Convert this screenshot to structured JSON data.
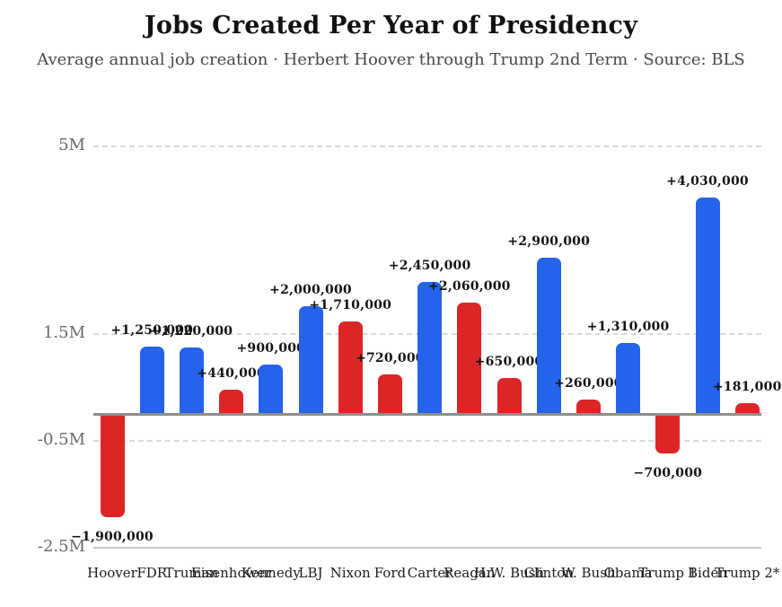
{
  "chart_data": {
    "type": "bar",
    "title": "Jobs Created Per Year of Presidency",
    "subtitle": "Average annual job creation · Herbert Hoover through Trump 2nd Term · Source: BLS",
    "unit": "jobs created per year (millions)",
    "ylim": [
      -2500000,
      5100000
    ],
    "grid": "horizontal dashed",
    "legend": "none",
    "y_ticks": [
      {
        "label": "5M",
        "value": 5000000,
        "line": "dashed"
      },
      {
        "label": "1.5M",
        "value": 1500000,
        "line": "dashed"
      },
      {
        "label": "-0.5M",
        "value": -500000,
        "line": "dashed"
      },
      {
        "label": "-2.5M",
        "value": -2500000,
        "line": "solid"
      }
    ],
    "bars": [
      {
        "president": "Hoover",
        "value": -1900000,
        "label": "−1,900,000",
        "party": "republican"
      },
      {
        "president": "FDR",
        "value": 1250000,
        "label": "+1,250,000",
        "party": "democrat"
      },
      {
        "president": "Truman",
        "value": 1220000,
        "label": "+1,220,000",
        "party": "democrat"
      },
      {
        "president": "Eisenhower",
        "value": 440000,
        "label": "+440,000",
        "party": "republican"
      },
      {
        "president": "Kennedy",
        "value": 900000,
        "label": "+900,000",
        "party": "democrat"
      },
      {
        "president": "LBJ",
        "value": 2000000,
        "label": "+2,000,000",
        "party": "democrat"
      },
      {
        "president": "Nixon",
        "value": 1710000,
        "label": "+1,710,000",
        "party": "republican"
      },
      {
        "president": "Ford",
        "value": 720000,
        "label": "+720,000",
        "party": "republican"
      },
      {
        "president": "Carter",
        "value": 2450000,
        "label": "+2,450,000",
        "party": "democrat"
      },
      {
        "president": "Reagan",
        "value": 2060000,
        "label": "+2,060,000",
        "party": "republican"
      },
      {
        "president": "H.W. Bush",
        "value": 650000,
        "label": "+650,000",
        "party": "republican"
      },
      {
        "president": "Clinton",
        "value": 2900000,
        "label": "+2,900,000",
        "party": "democrat"
      },
      {
        "president": "W. Bush",
        "value": 260000,
        "label": "+260,000",
        "party": "republican"
      },
      {
        "president": "Obama",
        "value": 1310000,
        "label": "+1,310,000",
        "party": "democrat"
      },
      {
        "president": "Trump 1",
        "value": -700000,
        "label": "−700,000",
        "party": "republican"
      },
      {
        "president": "Biden",
        "value": 4030000,
        "label": "+4,030,000",
        "party": "democrat"
      },
      {
        "president": "Trump 2*",
        "value": 181000,
        "label": "+181,000",
        "party": "republican"
      }
    ],
    "colors": {
      "democrat": "#2563eb",
      "republican": "#dc2626",
      "gridline": "#d9d9d9",
      "zero_line": "#8e8e8e",
      "bottom_line": "#c7c7c7"
    }
  }
}
